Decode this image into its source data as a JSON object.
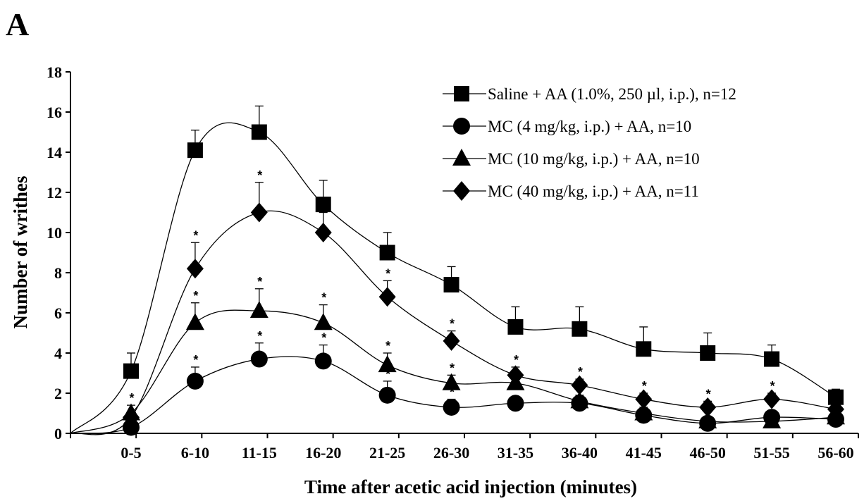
{
  "panel_label": "A",
  "chart_data": {
    "type": "line",
    "xlabel": "Time after acetic acid injection (minutes)",
    "ylabel": "Number of writhes",
    "ylim": [
      0,
      18
    ],
    "yticks": [
      "0",
      "2",
      "4",
      "6",
      "8",
      "10",
      "12",
      "14",
      "16",
      "18"
    ],
    "categories": [
      "0-5",
      "6-10",
      "11-15",
      "16-20",
      "21-25",
      "26-30",
      "31-35",
      "36-40",
      "41-45",
      "46-50",
      "51-55",
      "56-60"
    ],
    "legend_position": "top-right",
    "grid": false,
    "significance_mark": "*",
    "series": [
      {
        "name": "Saline + AA (1.0%, 250 µl, i.p.), n=12",
        "marker": "square",
        "values": [
          3.1,
          14.1,
          15.0,
          11.4,
          9.0,
          7.4,
          5.3,
          5.2,
          4.2,
          4.0,
          3.7,
          1.8
        ],
        "errors": [
          0.9,
          1.0,
          1.3,
          1.2,
          1.0,
          0.9,
          1.0,
          1.1,
          1.1,
          1.0,
          0.7,
          0.4
        ],
        "significant": [
          false,
          false,
          false,
          false,
          false,
          false,
          false,
          false,
          false,
          false,
          false,
          false
        ]
      },
      {
        "name": "MC (4  mg/kg, i.p.) + AA, n=10",
        "marker": "circle",
        "values": [
          0.3,
          2.6,
          3.7,
          3.6,
          1.9,
          1.3,
          1.5,
          1.5,
          0.9,
          0.5,
          0.8,
          0.7
        ],
        "errors": [
          0.2,
          0.7,
          0.8,
          0.8,
          0.7,
          0.4,
          0.3,
          0.3,
          0.3,
          0.3,
          0.2,
          0.2
        ],
        "significant": [
          false,
          true,
          true,
          true,
          true,
          true,
          false,
          false,
          false,
          true,
          false,
          false
        ]
      },
      {
        "name": "MC (10  mg/kg, i.p.) + AA, n=10",
        "marker": "triangle",
        "values": [
          1.0,
          5.5,
          6.1,
          5.5,
          3.4,
          2.5,
          2.5,
          1.6,
          1.0,
          0.6,
          0.6,
          0.8
        ],
        "errors": [
          0.4,
          1.0,
          1.1,
          0.9,
          0.6,
          0.4,
          0.4,
          0.3,
          0.3,
          0.2,
          0.2,
          0.2
        ],
        "significant": [
          true,
          true,
          true,
          true,
          true,
          true,
          false,
          false,
          false,
          false,
          false,
          false
        ]
      },
      {
        "name": "MC (40  mg/kg, i.p.) + AA, n=11",
        "marker": "diamond",
        "values": [
          0.8,
          8.2,
          11.0,
          10.0,
          6.8,
          4.6,
          2.9,
          2.4,
          1.7,
          1.3,
          1.7,
          1.2
        ],
        "errors": [
          0.3,
          1.3,
          1.5,
          1.0,
          0.8,
          0.5,
          0.4,
          0.3,
          0.3,
          0.3,
          0.3,
          0.2
        ],
        "significant": [
          false,
          true,
          true,
          false,
          true,
          true,
          true,
          true,
          true,
          true,
          true,
          false
        ]
      }
    ]
  }
}
